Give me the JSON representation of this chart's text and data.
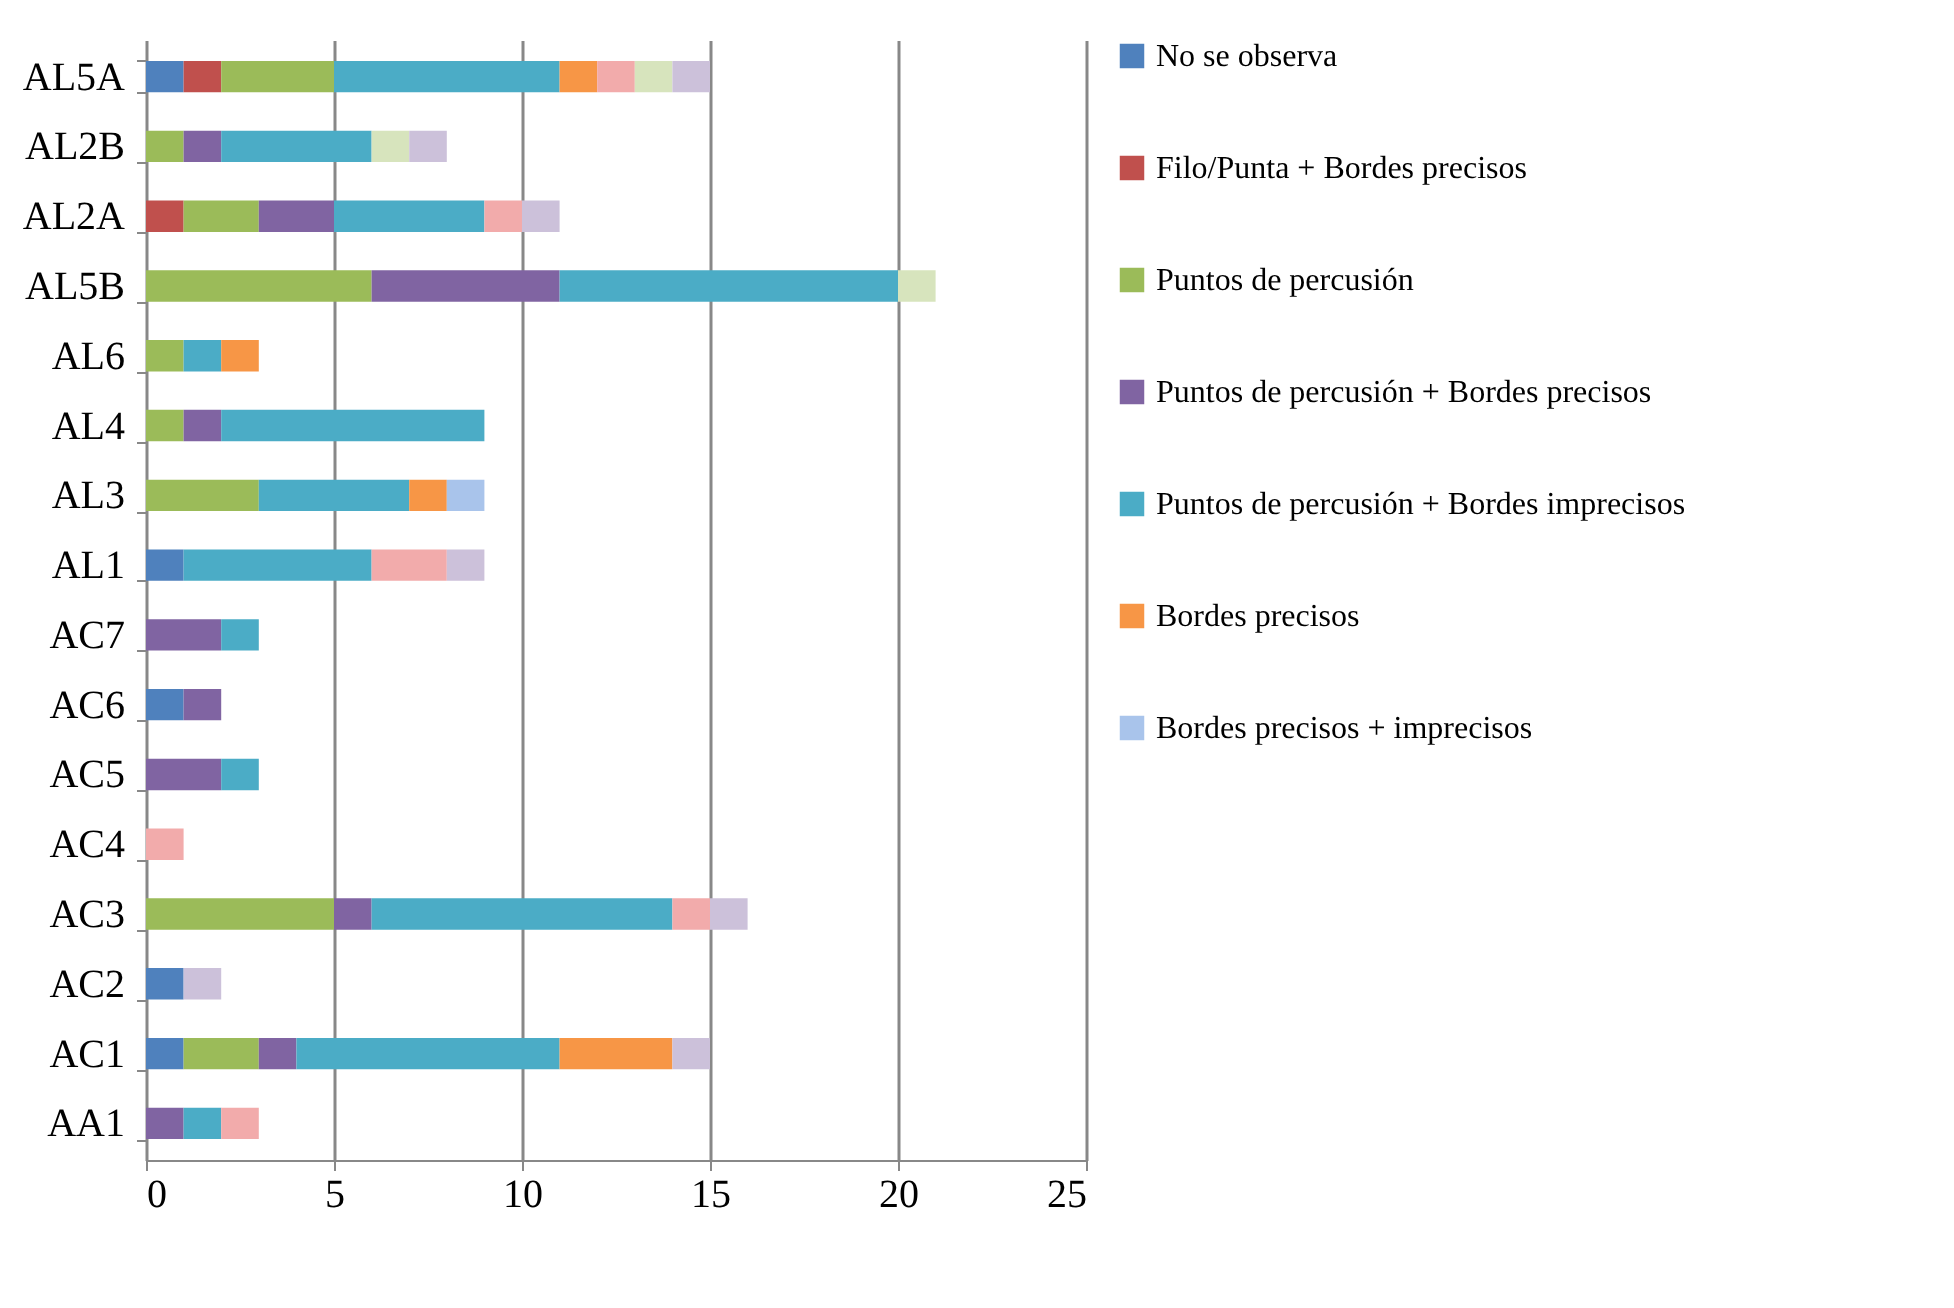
{
  "chart_data": {
    "type": "bar",
    "orientation": "horizontal",
    "stacked": true,
    "categories": [
      "AL5A",
      "AL2B",
      "AL2A",
      "AL5B",
      "AL6",
      "AL4",
      "AL3",
      "AL1",
      "AC7",
      "AC6",
      "AC5",
      "AC4",
      "AC3",
      "AC2",
      "AC1",
      "AA1"
    ],
    "series": [
      {
        "name": "No se observa",
        "color": "#4f81bd",
        "values": [
          1,
          0,
          0,
          0,
          0,
          0,
          0,
          1,
          0,
          1,
          0,
          0,
          0,
          1,
          1,
          0
        ]
      },
      {
        "name": "Filo/Punta + Bordes precisos",
        "color": "#c0504d",
        "values": [
          1,
          0,
          1,
          0,
          0,
          0,
          0,
          0,
          0,
          0,
          0,
          0,
          0,
          0,
          0,
          0
        ]
      },
      {
        "name": "Puntos de percusión",
        "color": "#9bbb59",
        "values": [
          3,
          1,
          2,
          6,
          1,
          1,
          3,
          0,
          0,
          0,
          0,
          0,
          5,
          0,
          2,
          0
        ]
      },
      {
        "name": "Puntos de percusión + Bordes precisos",
        "color": "#8064a2",
        "values": [
          0,
          1,
          2,
          5,
          0,
          1,
          0,
          0,
          2,
          1,
          2,
          0,
          1,
          0,
          1,
          1
        ]
      },
      {
        "name": "Puntos de percusión + Bordes imprecisos",
        "color": "#4bacc6",
        "values": [
          6,
          4,
          4,
          9,
          1,
          7,
          4,
          5,
          1,
          0,
          1,
          0,
          8,
          0,
          7,
          1
        ]
      },
      {
        "name": "Bordes precisos",
        "color": "#f79646",
        "values": [
          1,
          0,
          0,
          0,
          1,
          0,
          1,
          0,
          0,
          0,
          0,
          0,
          0,
          0,
          3,
          0
        ]
      },
      {
        "name": "Bordes precisos + imprecisos",
        "color": "#a9c4eb",
        "values": [
          0,
          0,
          0,
          0,
          0,
          0,
          1,
          0,
          0,
          0,
          0,
          0,
          0,
          0,
          0,
          0
        ]
      },
      {
        "color": "#f2abab",
        "values": [
          1,
          0,
          1,
          0,
          0,
          0,
          0,
          2,
          0,
          0,
          0,
          1,
          1,
          0,
          0,
          1
        ]
      },
      {
        "color": "#d7e4bd",
        "values": [
          1,
          1,
          0,
          1,
          0,
          0,
          0,
          0,
          0,
          0,
          0,
          0,
          0,
          0,
          0,
          0
        ]
      },
      {
        "color": "#ccc1da",
        "values": [
          1,
          1,
          1,
          0,
          0,
          0,
          0,
          1,
          0,
          0,
          0,
          0,
          1,
          1,
          1,
          0
        ]
      }
    ],
    "xlim": [
      0,
      25
    ],
    "xticks": [
      0,
      5,
      10,
      15,
      20,
      25
    ],
    "grid": "x",
    "legend": "right"
  }
}
